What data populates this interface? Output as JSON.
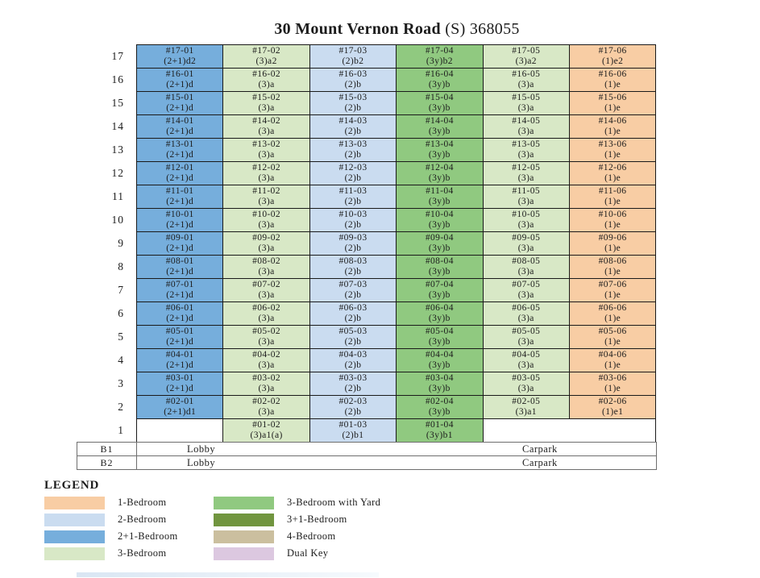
{
  "title": {
    "bold": "30 Mount Vernon Road",
    "rest": " (S) 368055"
  },
  "colors": {
    "1bed": "#F8CDA4",
    "2bed": "#CADCF0",
    "2p1": "#76AEDC",
    "3bed": "#D8E8C6",
    "3yard": "#90C980",
    "3p1": "#71953F",
    "4bed": "#CBBF9F",
    "dual": "#DCC8E0"
  },
  "floors": [
    {
      "label": "17",
      "units": [
        {
          "id": "#17-01",
          "type": "(2+1)d2",
          "cat": "2p1"
        },
        {
          "id": "#17-02",
          "type": "(3)a2",
          "cat": "3bed"
        },
        {
          "id": "#17-03",
          "type": "(2)b2",
          "cat": "2bed"
        },
        {
          "id": "#17-04",
          "type": "(3y)b2",
          "cat": "3yard"
        },
        {
          "id": "#17-05",
          "type": "(3)a2",
          "cat": "3bed"
        },
        {
          "id": "#17-06",
          "type": "(1)e2",
          "cat": "1bed"
        }
      ]
    },
    {
      "label": "16",
      "units": [
        {
          "id": "#16-01",
          "type": "(2+1)d",
          "cat": "2p1"
        },
        {
          "id": "#16-02",
          "type": "(3)a",
          "cat": "3bed"
        },
        {
          "id": "#16-03",
          "type": "(2)b",
          "cat": "2bed"
        },
        {
          "id": "#16-04",
          "type": "(3y)b",
          "cat": "3yard"
        },
        {
          "id": "#16-05",
          "type": "(3)a",
          "cat": "3bed"
        },
        {
          "id": "#16-06",
          "type": "(1)e",
          "cat": "1bed"
        }
      ]
    },
    {
      "label": "15",
      "units": [
        {
          "id": "#15-01",
          "type": "(2+1)d",
          "cat": "2p1"
        },
        {
          "id": "#15-02",
          "type": "(3)a",
          "cat": "3bed"
        },
        {
          "id": "#15-03",
          "type": "(2)b",
          "cat": "2bed"
        },
        {
          "id": "#15-04",
          "type": "(3y)b",
          "cat": "3yard"
        },
        {
          "id": "#15-05",
          "type": "(3)a",
          "cat": "3bed"
        },
        {
          "id": "#15-06",
          "type": "(1)e",
          "cat": "1bed"
        }
      ]
    },
    {
      "label": "14",
      "units": [
        {
          "id": "#14-01",
          "type": "(2+1)d",
          "cat": "2p1"
        },
        {
          "id": "#14-02",
          "type": "(3)a",
          "cat": "3bed"
        },
        {
          "id": "#14-03",
          "type": "(2)b",
          "cat": "2bed"
        },
        {
          "id": "#14-04",
          "type": "(3y)b",
          "cat": "3yard"
        },
        {
          "id": "#14-05",
          "type": "(3)a",
          "cat": "3bed"
        },
        {
          "id": "#14-06",
          "type": "(1)e",
          "cat": "1bed"
        }
      ]
    },
    {
      "label": "13",
      "units": [
        {
          "id": "#13-01",
          "type": "(2+1)d",
          "cat": "2p1"
        },
        {
          "id": "#13-02",
          "type": "(3)a",
          "cat": "3bed"
        },
        {
          "id": "#13-03",
          "type": "(2)b",
          "cat": "2bed"
        },
        {
          "id": "#13-04",
          "type": "(3y)b",
          "cat": "3yard"
        },
        {
          "id": "#13-05",
          "type": "(3)a",
          "cat": "3bed"
        },
        {
          "id": "#13-06",
          "type": "(1)e",
          "cat": "1bed"
        }
      ]
    },
    {
      "label": "12",
      "units": [
        {
          "id": "#12-01",
          "type": "(2+1)d",
          "cat": "2p1"
        },
        {
          "id": "#12-02",
          "type": "(3)a",
          "cat": "3bed"
        },
        {
          "id": "#12-03",
          "type": "(2)b",
          "cat": "2bed"
        },
        {
          "id": "#12-04",
          "type": "(3y)b",
          "cat": "3yard"
        },
        {
          "id": "#12-05",
          "type": "(3)a",
          "cat": "3bed"
        },
        {
          "id": "#12-06",
          "type": "(1)e",
          "cat": "1bed"
        }
      ]
    },
    {
      "label": "11",
      "units": [
        {
          "id": "#11-01",
          "type": "(2+1)d",
          "cat": "2p1"
        },
        {
          "id": "#11-02",
          "type": "(3)a",
          "cat": "3bed"
        },
        {
          "id": "#11-03",
          "type": "(2)b",
          "cat": "2bed"
        },
        {
          "id": "#11-04",
          "type": "(3y)b",
          "cat": "3yard"
        },
        {
          "id": "#11-05",
          "type": "(3)a",
          "cat": "3bed"
        },
        {
          "id": "#11-06",
          "type": "(1)e",
          "cat": "1bed"
        }
      ]
    },
    {
      "label": "10",
      "units": [
        {
          "id": "#10-01",
          "type": "(2+1)d",
          "cat": "2p1"
        },
        {
          "id": "#10-02",
          "type": "(3)a",
          "cat": "3bed"
        },
        {
          "id": "#10-03",
          "type": "(2)b",
          "cat": "2bed"
        },
        {
          "id": "#10-04",
          "type": "(3y)b",
          "cat": "3yard"
        },
        {
          "id": "#10-05",
          "type": "(3)a",
          "cat": "3bed"
        },
        {
          "id": "#10-06",
          "type": "(1)e",
          "cat": "1bed"
        }
      ]
    },
    {
      "label": "9",
      "units": [
        {
          "id": "#09-01",
          "type": "(2+1)d",
          "cat": "2p1"
        },
        {
          "id": "#09-02",
          "type": "(3)a",
          "cat": "3bed"
        },
        {
          "id": "#09-03",
          "type": "(2)b",
          "cat": "2bed"
        },
        {
          "id": "#09-04",
          "type": "(3y)b",
          "cat": "3yard"
        },
        {
          "id": "#09-05",
          "type": "(3)a",
          "cat": "3bed"
        },
        {
          "id": "#09-06",
          "type": "(1)e",
          "cat": "1bed"
        }
      ]
    },
    {
      "label": "8",
      "units": [
        {
          "id": "#08-01",
          "type": "(2+1)d",
          "cat": "2p1"
        },
        {
          "id": "#08-02",
          "type": "(3)a",
          "cat": "3bed"
        },
        {
          "id": "#08-03",
          "type": "(2)b",
          "cat": "2bed"
        },
        {
          "id": "#08-04",
          "type": "(3y)b",
          "cat": "3yard"
        },
        {
          "id": "#08-05",
          "type": "(3)a",
          "cat": "3bed"
        },
        {
          "id": "#08-06",
          "type": "(1)e",
          "cat": "1bed"
        }
      ]
    },
    {
      "label": "7",
      "units": [
        {
          "id": "#07-01",
          "type": "(2+1)d",
          "cat": "2p1"
        },
        {
          "id": "#07-02",
          "type": "(3)a",
          "cat": "3bed"
        },
        {
          "id": "#07-03",
          "type": "(2)b",
          "cat": "2bed"
        },
        {
          "id": "#07-04",
          "type": "(3y)b",
          "cat": "3yard"
        },
        {
          "id": "#07-05",
          "type": "(3)a",
          "cat": "3bed"
        },
        {
          "id": "#07-06",
          "type": "(1)e",
          "cat": "1bed"
        }
      ]
    },
    {
      "label": "6",
      "units": [
        {
          "id": "#06-01",
          "type": "(2+1)d",
          "cat": "2p1"
        },
        {
          "id": "#06-02",
          "type": "(3)a",
          "cat": "3bed"
        },
        {
          "id": "#06-03",
          "type": "(2)b",
          "cat": "2bed"
        },
        {
          "id": "#06-04",
          "type": "(3y)b",
          "cat": "3yard"
        },
        {
          "id": "#06-05",
          "type": "(3)a",
          "cat": "3bed"
        },
        {
          "id": "#06-06",
          "type": "(1)e",
          "cat": "1bed"
        }
      ]
    },
    {
      "label": "5",
      "units": [
        {
          "id": "#05-01",
          "type": "(2+1)d",
          "cat": "2p1"
        },
        {
          "id": "#05-02",
          "type": "(3)a",
          "cat": "3bed"
        },
        {
          "id": "#05-03",
          "type": "(2)b",
          "cat": "2bed"
        },
        {
          "id": "#05-04",
          "type": "(3y)b",
          "cat": "3yard"
        },
        {
          "id": "#05-05",
          "type": "(3)a",
          "cat": "3bed"
        },
        {
          "id": "#05-06",
          "type": "(1)e",
          "cat": "1bed"
        }
      ]
    },
    {
      "label": "4",
      "units": [
        {
          "id": "#04-01",
          "type": "(2+1)d",
          "cat": "2p1"
        },
        {
          "id": "#04-02",
          "type": "(3)a",
          "cat": "3bed"
        },
        {
          "id": "#04-03",
          "type": "(2)b",
          "cat": "2bed"
        },
        {
          "id": "#04-04",
          "type": "(3y)b",
          "cat": "3yard"
        },
        {
          "id": "#04-05",
          "type": "(3)a",
          "cat": "3bed"
        },
        {
          "id": "#04-06",
          "type": "(1)e",
          "cat": "1bed"
        }
      ]
    },
    {
      "label": "3",
      "units": [
        {
          "id": "#03-01",
          "type": "(2+1)d",
          "cat": "2p1"
        },
        {
          "id": "#03-02",
          "type": "(3)a",
          "cat": "3bed"
        },
        {
          "id": "#03-03",
          "type": "(2)b",
          "cat": "2bed"
        },
        {
          "id": "#03-04",
          "type": "(3y)b",
          "cat": "3yard"
        },
        {
          "id": "#03-05",
          "type": "(3)a",
          "cat": "3bed"
        },
        {
          "id": "#03-06",
          "type": "(1)e",
          "cat": "1bed"
        }
      ]
    },
    {
      "label": "2",
      "units": [
        {
          "id": "#02-01",
          "type": "(2+1)d1",
          "cat": "2p1"
        },
        {
          "id": "#02-02",
          "type": "(3)a",
          "cat": "3bed"
        },
        {
          "id": "#02-03",
          "type": "(2)b",
          "cat": "2bed"
        },
        {
          "id": "#02-04",
          "type": "(3y)b",
          "cat": "3yard"
        },
        {
          "id": "#02-05",
          "type": "(3)a1",
          "cat": "3bed"
        },
        {
          "id": "#02-06",
          "type": "(1)e1",
          "cat": "1bed"
        }
      ]
    },
    {
      "label": "1",
      "units": [
        {
          "empty": true,
          "span": 1
        },
        {
          "id": "#01-02",
          "type": "(3)a1(a)",
          "cat": "3bed"
        },
        {
          "id": "#01-03",
          "type": "(2)b1",
          "cat": "2bed"
        },
        {
          "id": "#01-04",
          "type": "(3y)b1",
          "cat": "3yard"
        },
        {
          "empty": true,
          "span": 2
        }
      ]
    }
  ],
  "basement": [
    {
      "label": "B1",
      "left": "Lobby",
      "right": "Carpark"
    },
    {
      "label": "B2",
      "left": "Lobby",
      "right": "Carpark"
    }
  ],
  "legend": {
    "title": "LEGEND",
    "columns": [
      [
        {
          "label": "1-Bedroom",
          "cat": "1bed"
        },
        {
          "label": "2-Bedroom",
          "cat": "2bed"
        },
        {
          "label": "2+1-Bedroom",
          "cat": "2p1"
        },
        {
          "label": "3-Bedroom",
          "cat": "3bed"
        }
      ],
      [
        {
          "label": "3-Bedroom with Yard",
          "cat": "3yard"
        },
        {
          "label": "3+1-Bedroom",
          "cat": "3p1"
        },
        {
          "label": "4-Bedroom",
          "cat": "4bed"
        },
        {
          "label": "Dual Key",
          "cat": "dual"
        }
      ]
    ]
  }
}
